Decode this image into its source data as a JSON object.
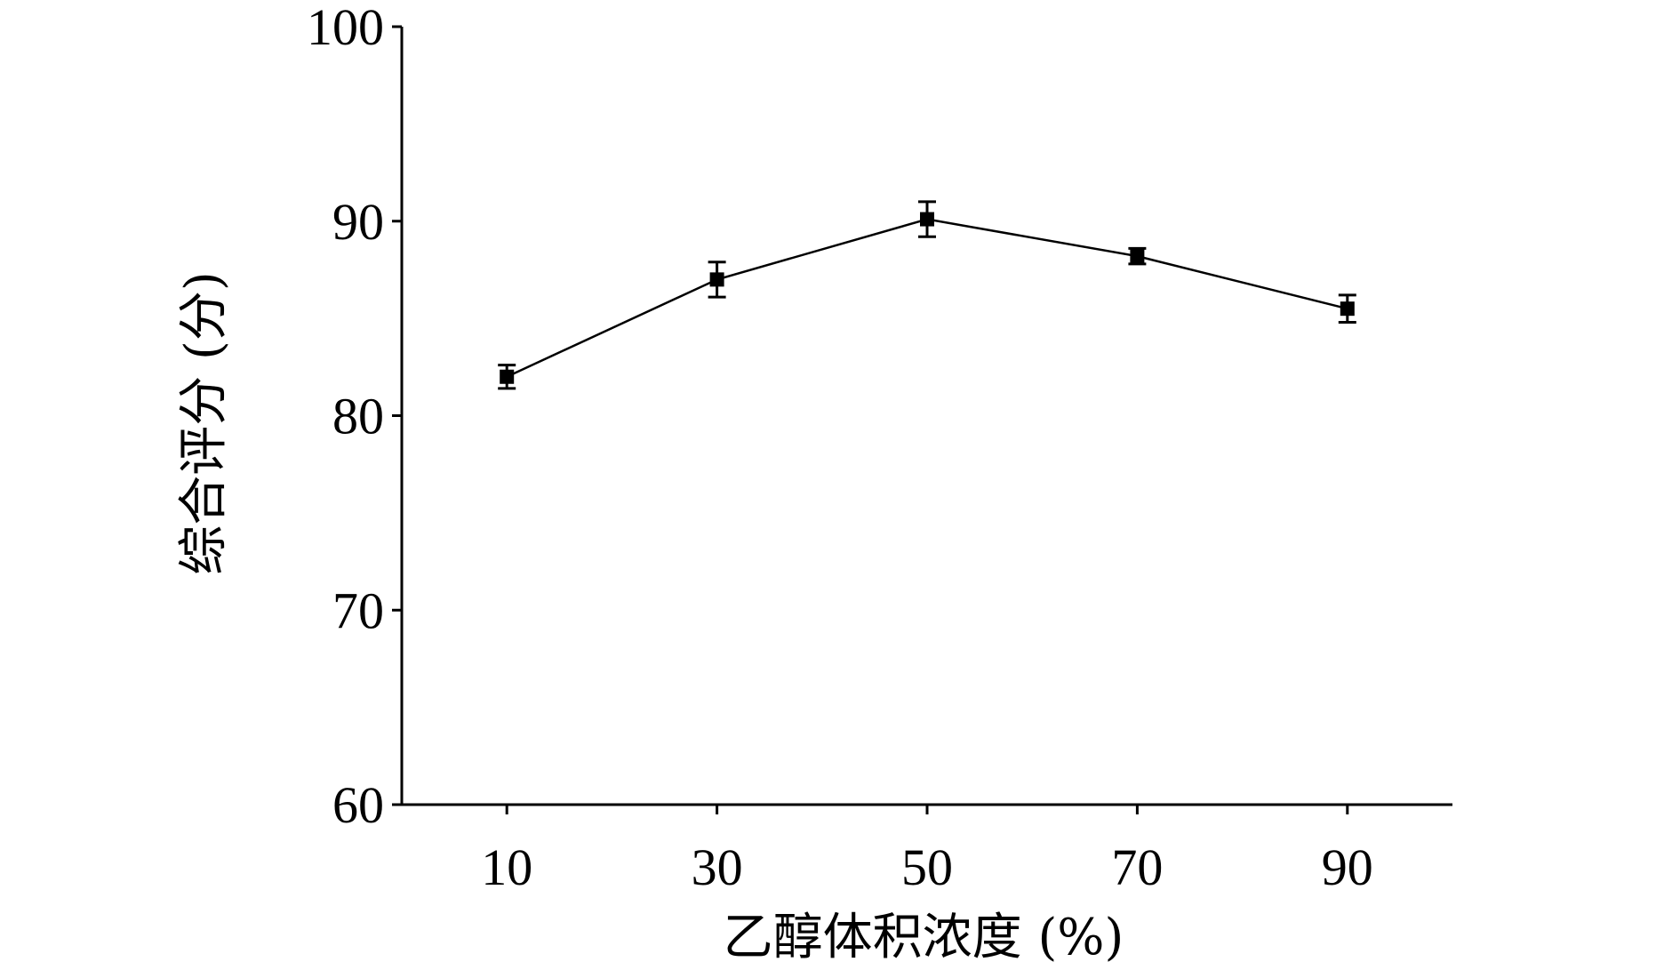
{
  "chart_data": {
    "type": "line",
    "xlabel": "乙醇体积浓度 (%)",
    "ylabel": "综合评分 (分)",
    "x": [
      10,
      30,
      50,
      70,
      90
    ],
    "xticks": [
      "10",
      "30",
      "50",
      "70",
      "90"
    ],
    "yticks": [
      "60",
      "70",
      "80",
      "90",
      "100"
    ],
    "xlim": [
      0,
      100
    ],
    "ylim": [
      60,
      100
    ],
    "grid": false,
    "series": [
      {
        "values": [
          82.0,
          87.0,
          90.1,
          88.2,
          85.5
        ],
        "errors": [
          0.6,
          0.9,
          0.9,
          0.4,
          0.7
        ],
        "marker": "square",
        "color": "#000000"
      }
    ]
  }
}
